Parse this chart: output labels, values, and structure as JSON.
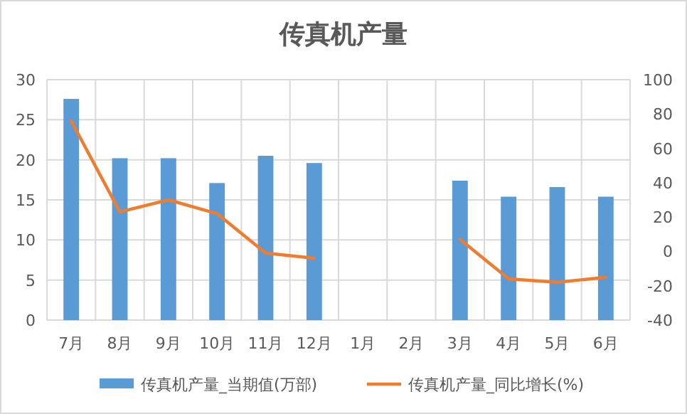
{
  "chart_data": {
    "type": "bar",
    "title": "传真机产量",
    "categories": [
      "7月",
      "8月",
      "9月",
      "10月",
      "11月",
      "12月",
      "1月",
      "2月",
      "3月",
      "4月",
      "5月",
      "6月"
    ],
    "series": [
      {
        "name": "传真机产量_当期值(万部)",
        "color": "#5b9bd5",
        "values": [
          27.6,
          20.2,
          20.2,
          17.1,
          20.5,
          19.6,
          null,
          null,
          17.4,
          15.4,
          16.6,
          15.4
        ]
      },
      {
        "name": "传真机产量_同比增长(%)",
        "type": "line",
        "axis": "y2",
        "color": "#ed7d31",
        "values": [
          76,
          23,
          30,
          22,
          -1,
          -4,
          null,
          null,
          7,
          -16,
          -18,
          -15
        ]
      }
    ],
    "ylim": [
      0,
      30
    ],
    "yticks": [
      0,
      5,
      10,
      15,
      20,
      25,
      30
    ],
    "y2lim": [
      -40,
      100
    ],
    "y2ticks": [
      -40,
      -20,
      0,
      20,
      40,
      60,
      80,
      100
    ],
    "grid": true,
    "legend": "bottom",
    "marker": "none",
    "line_style": "solid"
  }
}
